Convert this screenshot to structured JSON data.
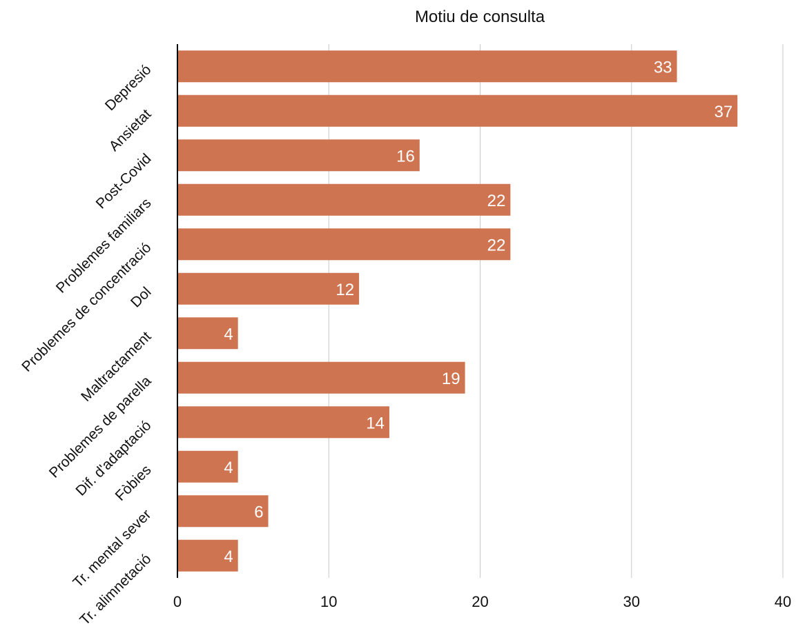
{
  "chart_data": {
    "type": "bar",
    "orientation": "horizontal",
    "title": "Motiu de consulta",
    "xlabel": "",
    "ylabel": "",
    "xlim": [
      0,
      40
    ],
    "xticks": [
      0,
      10,
      20,
      30,
      40
    ],
    "grid": true,
    "legend": "none",
    "bar_color": "#cf7450",
    "value_label_color": "#ffffff",
    "categories": [
      "Depresió",
      "Ansietat",
      "Post-Covid",
      "Problemes familiars",
      "Problemes de concentració",
      "Dol",
      "Maltractament",
      "Problemes de parella",
      "Dif. d'adaptació",
      "Fòbies",
      "Tr. mental sever",
      "Tr. alimnetació"
    ],
    "values": [
      33,
      37,
      16,
      22,
      22,
      12,
      4,
      19,
      14,
      4,
      6,
      4
    ]
  }
}
